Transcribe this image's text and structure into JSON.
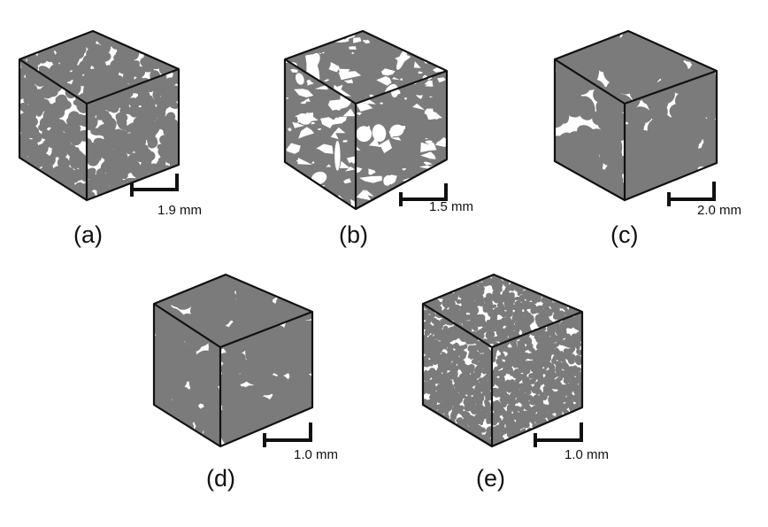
{
  "panels": [
    {
      "id": "a",
      "label": "(a)",
      "scale_text": "1.9 mm",
      "texture": "round-particles"
    },
    {
      "id": "b",
      "label": "(b)",
      "scale_text": "1.5 mm",
      "texture": "sparse-voids"
    },
    {
      "id": "c",
      "label": "(c)",
      "scale_text": "2.0 mm",
      "texture": "packed-grains"
    },
    {
      "id": "d",
      "label": "(d)",
      "scale_text": "1.0 mm",
      "texture": "mixed-grains"
    },
    {
      "id": "e",
      "label": "(e)",
      "scale_text": "1.0 mm",
      "texture": "fine-grains"
    }
  ],
  "colors": {
    "solid": "#7b7b7b",
    "pore": "#ffffff",
    "edge": "#111111"
  }
}
